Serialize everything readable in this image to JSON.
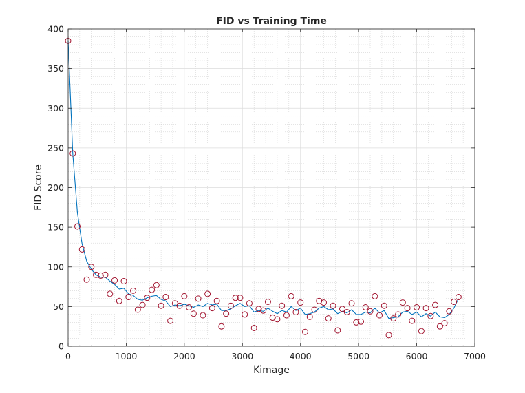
{
  "chart_data": {
    "type": "scatter",
    "title": "FID vs Training Time",
    "xlabel": "Kimage",
    "ylabel": "FID Score",
    "xlim": [
      0,
      7000
    ],
    "ylim": [
      0,
      400
    ],
    "xticks": [
      0,
      1000,
      2000,
      3000,
      4000,
      5000,
      6000,
      7000
    ],
    "yticks": [
      0,
      50,
      100,
      150,
      200,
      250,
      300,
      350,
      400
    ],
    "grid": true,
    "minor_grid": true,
    "series": [
      {
        "kind": "scatter",
        "marker": "open-circle",
        "color": "#a2142f",
        "x": [
          0,
          80,
          160,
          240,
          320,
          400,
          480,
          560,
          640,
          720,
          800,
          880,
          960,
          1040,
          1120,
          1200,
          1280,
          1360,
          1440,
          1520,
          1600,
          1680,
          1760,
          1840,
          1920,
          2000,
          2080,
          2160,
          2240,
          2320,
          2400,
          2480,
          2560,
          2640,
          2720,
          2800,
          2880,
          2960,
          3040,
          3120,
          3200,
          3280,
          3360,
          3440,
          3520,
          3600,
          3680,
          3760,
          3840,
          3920,
          4000,
          4080,
          4160,
          4240,
          4320,
          4400,
          4480,
          4560,
          4640,
          4720,
          4800,
          4880,
          4960,
          5040,
          5120,
          5200,
          5280,
          5360,
          5440,
          5520,
          5600,
          5680,
          5760,
          5840,
          5920,
          6000,
          6080,
          6160,
          6240,
          6320,
          6400,
          6480,
          6560,
          6640,
          6720
        ],
        "y": [
          385,
          243,
          151,
          122,
          84,
          100,
          90,
          89,
          90,
          66,
          83,
          57,
          82,
          62,
          70,
          46,
          52,
          61,
          71,
          77,
          51,
          62,
          32,
          54,
          51,
          63,
          49,
          41,
          60,
          39,
          66,
          48,
          57,
          25,
          41,
          51,
          61,
          61,
          40,
          54,
          23,
          47,
          45,
          56,
          36,
          34,
          51,
          39,
          63,
          43,
          55,
          18,
          37,
          46,
          57,
          55,
          35,
          51,
          20,
          47,
          43,
          54,
          30,
          31,
          49,
          44,
          63,
          39,
          51,
          14,
          35,
          40,
          55,
          48,
          32,
          49,
          19,
          48,
          38,
          52,
          25,
          29,
          44,
          56,
          62
        ]
      },
      {
        "kind": "line",
        "color": "#0072bd",
        "x": [
          0,
          80,
          160,
          240,
          320,
          400,
          480,
          560,
          640,
          720,
          800,
          880,
          960,
          1040,
          1120,
          1200,
          1280,
          1360,
          1440,
          1520,
          1600,
          1680,
          1760,
          1840,
          1920,
          2000,
          2080,
          2160,
          2240,
          2320,
          2400,
          2480,
          2560,
          2640,
          2720,
          2800,
          2880,
          2960,
          3040,
          3120,
          3200,
          3280,
          3360,
          3440,
          3520,
          3600,
          3680,
          3760,
          3840,
          3920,
          4000,
          4080,
          4160,
          4240,
          4320,
          4400,
          4480,
          4560,
          4640,
          4720,
          4800,
          4880,
          4960,
          5040,
          5120,
          5200,
          5280,
          5360,
          5440,
          5520,
          5600,
          5680,
          5760,
          5840,
          5920,
          6000,
          6080,
          6160,
          6240,
          6320,
          6400,
          6480,
          6560,
          6640,
          6720
        ],
        "y": [
          385,
          243,
          168,
          129,
          107,
          97,
          90,
          87,
          87,
          82,
          78,
          72,
          73,
          66,
          64,
          59,
          58,
          61,
          63,
          64,
          59,
          57,
          50,
          52,
          51,
          53,
          51,
          49,
          52,
          50,
          54,
          52,
          53,
          45,
          45,
          47,
          51,
          54,
          50,
          51,
          43,
          45,
          44,
          48,
          44,
          41,
          45,
          43,
          50,
          45,
          48,
          40,
          41,
          43,
          48,
          50,
          46,
          47,
          41,
          44,
          42,
          46,
          40,
          40,
          43,
          42,
          48,
          42,
          45,
          35,
          36,
          37,
          43,
          44,
          40,
          43,
          37,
          41,
          38,
          43,
          37,
          36,
          40,
          48,
          60
        ]
      }
    ]
  }
}
